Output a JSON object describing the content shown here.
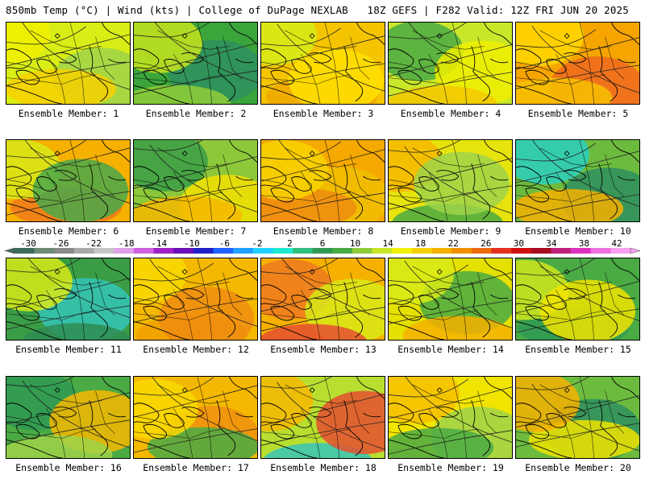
{
  "header": {
    "left": "850mb Temp (°C) | Wind (kts) | College of DuPage NEXLAB",
    "right": "18Z GEFS | F282 Valid: 12Z FRI JUN 20 2025"
  },
  "member_label_prefix": "Ensemble Member: ",
  "members": [
    {
      "number": "1",
      "regime": "warm",
      "base": "#d8ee16",
      "blobs": [
        {
          "c": "#f1f000"
        },
        {
          "c": "#9fd44a"
        },
        {
          "c": "#f7d000"
        }
      ]
    },
    {
      "number": "2",
      "regime": "cool",
      "base": "#3aa53a",
      "blobs": [
        {
          "c": "#2f8f5f"
        },
        {
          "c": "#8fcc3a"
        },
        {
          "c": "#c7e41f"
        }
      ]
    },
    {
      "number": "3",
      "regime": "hot",
      "base": "#f5c400",
      "blobs": [
        {
          "c": "#f0a800"
        },
        {
          "c": "#d7ec18"
        },
        {
          "c": "#ffe000"
        }
      ]
    },
    {
      "number": "4",
      "regime": "warm",
      "base": "#c9e628",
      "blobs": [
        {
          "c": "#4aaa44"
        },
        {
          "c": "#f0ef00"
        },
        {
          "c": "#f5c800"
        }
      ]
    },
    {
      "number": "5",
      "regime": "hot",
      "base": "#f5a400",
      "blobs": [
        {
          "c": "#ef6a20"
        },
        {
          "c": "#f7c000"
        },
        {
          "c": "#ffd800"
        }
      ]
    },
    {
      "number": "6",
      "regime": "hot",
      "base": "#f5b000",
      "blobs": [
        {
          "c": "#ee7a1a"
        },
        {
          "c": "#d8ea18"
        },
        {
          "c": "#4aa84a"
        }
      ]
    },
    {
      "number": "7",
      "regime": "cool",
      "base": "#8cc83a",
      "blobs": [
        {
          "c": "#3a9d46"
        },
        {
          "c": "#f5e000"
        },
        {
          "c": "#f6b800"
        }
      ]
    },
    {
      "number": "8",
      "regime": "hot",
      "base": "#f5a800",
      "blobs": [
        {
          "c": "#f0c000"
        },
        {
          "c": "#ef8c10"
        },
        {
          "c": "#f8d400"
        }
      ]
    },
    {
      "number": "9",
      "regime": "warm",
      "base": "#e7e30c",
      "blobs": [
        {
          "c": "#4aaa44"
        },
        {
          "c": "#f6b800"
        },
        {
          "c": "#9fd44a"
        }
      ]
    },
    {
      "number": "10",
      "regime": "cool",
      "base": "#6dbb3e",
      "blobs": [
        {
          "c": "#2bcfc0"
        },
        {
          "c": "#2f8f5f"
        },
        {
          "c": "#f6b000"
        }
      ]
    },
    {
      "number": "11",
      "regime": "cold",
      "base": "#3a9d46",
      "blobs": [
        {
          "c": "#36c6b8"
        },
        {
          "c": "#2e8c52"
        },
        {
          "c": "#d8ea18"
        }
      ]
    },
    {
      "number": "12",
      "regime": "hot",
      "base": "#f5b800",
      "blobs": [
        {
          "c": "#f0a000"
        },
        {
          "c": "#f8d800"
        },
        {
          "c": "#ef8c10"
        }
      ]
    },
    {
      "number": "13",
      "regime": "hot",
      "base": "#f5b000",
      "blobs": [
        {
          "c": "#ef7a20"
        },
        {
          "c": "#d8ea18"
        },
        {
          "c": "#e55030"
        }
      ]
    },
    {
      "number": "14",
      "regime": "warm",
      "base": "#e5e000",
      "blobs": [
        {
          "c": "#4aaa44"
        },
        {
          "c": "#f6b000"
        },
        {
          "c": "#d8ea18"
        }
      ]
    },
    {
      "number": "15",
      "regime": "cool",
      "base": "#4aaa44",
      "blobs": [
        {
          "c": "#2f9a54"
        },
        {
          "c": "#d0e81c"
        },
        {
          "c": "#f0e400"
        }
      ]
    },
    {
      "number": "16",
      "regime": "cool",
      "base": "#4aaa44",
      "blobs": [
        {
          "c": "#2f9a54"
        },
        {
          "c": "#f6b800"
        },
        {
          "c": "#9fd44a"
        }
      ]
    },
    {
      "number": "17",
      "regime": "hot",
      "base": "#f5b800",
      "blobs": [
        {
          "c": "#ef9010"
        },
        {
          "c": "#4aaa44"
        },
        {
          "c": "#f8d800"
        }
      ]
    },
    {
      "number": "18",
      "regime": "warm",
      "base": "#b8de30",
      "blobs": [
        {
          "c": "#36c6b8"
        },
        {
          "c": "#f6b800"
        },
        {
          "c": "#e55030"
        }
      ]
    },
    {
      "number": "19",
      "regime": "warm",
      "base": "#f0e400",
      "blobs": [
        {
          "c": "#f6c000"
        },
        {
          "c": "#9fd44a"
        },
        {
          "c": "#4aaa44"
        }
      ]
    },
    {
      "number": "20",
      "regime": "cool",
      "base": "#6dbb3e",
      "blobs": [
        {
          "c": "#2f8f5f"
        },
        {
          "c": "#f0e400"
        },
        {
          "c": "#f6b000"
        }
      ]
    }
  ],
  "colorbar": {
    "tick_labels": [
      "-30",
      "-26",
      "-22",
      "-18",
      "-14",
      "-10",
      "-6",
      "-2",
      "2",
      "6",
      "10",
      "14",
      "18",
      "22",
      "26",
      "30",
      "34",
      "38",
      "42"
    ],
    "colors": [
      "#3d6b5a",
      "#6d8a74",
      "#8a8a8a",
      "#a9a9a9",
      "#c6c6c6",
      "#e0a0e8",
      "#d060e0",
      "#a020c8",
      "#6a10b8",
      "#2020c8",
      "#2060ff",
      "#20a0ff",
      "#20d0ff",
      "#20e8d0",
      "#30c080",
      "#2f9a54",
      "#4aaa44",
      "#8fcc3a",
      "#c9e628",
      "#f0f000",
      "#f6d000",
      "#f6b000",
      "#f09000",
      "#ee6a10",
      "#e53020",
      "#d01010",
      "#a80a20",
      "#c0207a",
      "#e030c0",
      "#f070e0",
      "#f8a0f0"
    ],
    "tick_color": "#000000"
  }
}
